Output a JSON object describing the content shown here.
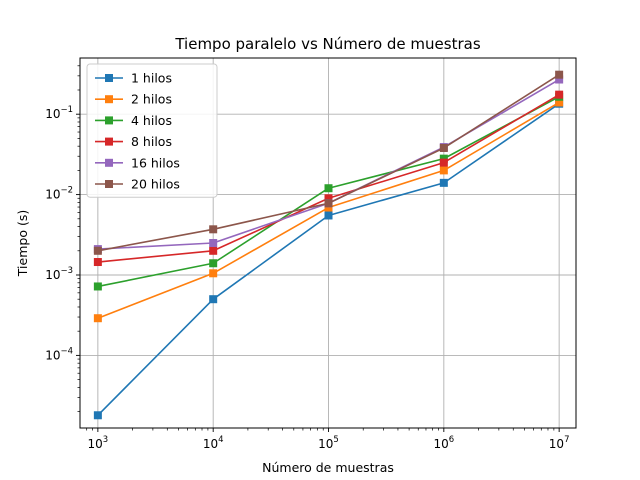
{
  "chart_data": {
    "type": "line",
    "title": "Tiempo paralelo vs Número de muestras",
    "xlabel": "Número de muestras",
    "ylabel": "Tiempo (s)",
    "xscale": "log",
    "yscale": "log",
    "xlim": [
      700,
      14000000
    ],
    "ylim": [
      1.25e-05,
      0.5
    ],
    "grid": true,
    "legend_position": "top-left",
    "x": [
      1000,
      10000,
      100000,
      1000000,
      10000000
    ],
    "x_ticks": [
      {
        "value": 1000,
        "base": "10",
        "exp": "3"
      },
      {
        "value": 10000,
        "base": "10",
        "exp": "4"
      },
      {
        "value": 100000,
        "base": "10",
        "exp": "5"
      },
      {
        "value": 1000000,
        "base": "10",
        "exp": "6"
      },
      {
        "value": 10000000,
        "base": "10",
        "exp": "7"
      }
    ],
    "y_ticks": [
      {
        "value": 0.0001,
        "base": "10",
        "exp": "−4"
      },
      {
        "value": 0.001,
        "base": "10",
        "exp": "−3"
      },
      {
        "value": 0.01,
        "base": "10",
        "exp": "−2"
      },
      {
        "value": 0.1,
        "base": "10",
        "exp": "−1"
      }
    ],
    "series": [
      {
        "name": "1 hilos",
        "color": "#1f77b4",
        "values": [
          1.8e-05,
          0.0005,
          0.0055,
          0.014,
          0.135
        ]
      },
      {
        "name": "2 hilos",
        "color": "#ff7f0e",
        "values": [
          0.00029,
          0.00105,
          0.0069,
          0.02,
          0.14
        ]
      },
      {
        "name": "4 hilos",
        "color": "#2ca02c",
        "values": [
          0.00072,
          0.0014,
          0.012,
          0.028,
          0.165
        ]
      },
      {
        "name": "8 hilos",
        "color": "#d62728",
        "values": [
          0.00145,
          0.002,
          0.009,
          0.025,
          0.175
        ]
      },
      {
        "name": "16 hilos",
        "color": "#9467bd",
        "values": [
          0.0021,
          0.0025,
          0.0078,
          0.039,
          0.27
        ]
      },
      {
        "name": "20 hilos",
        "color": "#8c564b",
        "values": [
          0.002,
          0.0037,
          0.0078,
          0.038,
          0.31
        ]
      }
    ]
  }
}
